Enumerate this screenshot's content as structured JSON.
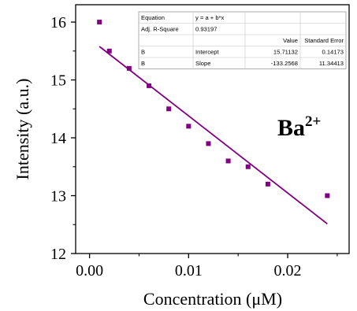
{
  "chart_data": {
    "type": "scatter",
    "title": "",
    "xlabel": "Concentration (μM)",
    "ylabel": "Intensity (a.u.)",
    "xlim": [
      -0.0014,
      0.0262
    ],
    "ylim": [
      12,
      16.3
    ],
    "x_ticks": [
      0.0,
      0.01,
      0.02
    ],
    "x_tick_labels": [
      "0.00",
      "0.01",
      "0.02"
    ],
    "y_ticks": [
      12,
      13,
      14,
      15,
      16
    ],
    "y_tick_labels": [
      "12",
      "13",
      "14",
      "15",
      "16"
    ],
    "grid": false,
    "legend": "none",
    "annotation": {
      "base": "Ba",
      "superscript": "2+"
    },
    "series": [
      {
        "kind": "points",
        "marker": "square",
        "color": "#800080",
        "x": [
          0.001,
          0.002,
          0.004,
          0.006,
          0.008,
          0.01,
          0.012,
          0.014,
          0.016,
          0.018,
          0.024
        ],
        "y": [
          16.0,
          15.5,
          15.2,
          14.9,
          14.5,
          14.2,
          13.9,
          13.6,
          13.5,
          13.2,
          13.0
        ]
      },
      {
        "kind": "fit-line",
        "color": "#800080",
        "intercept": 15.71132,
        "slope": -133.2568,
        "x_range": [
          0.001,
          0.024
        ]
      }
    ],
    "fit_table": {
      "rows": [
        [
          "Equation",
          "y = a + b*x",
          "",
          ""
        ],
        [
          "Adj. R-Square",
          "0.93197",
          "",
          ""
        ],
        [
          "",
          "",
          "Value",
          "Standard Error"
        ],
        [
          "B",
          "Intercept",
          "15.71132",
          "0.14173"
        ],
        [
          "B",
          "Slope",
          "-133.2568",
          "11.34413"
        ]
      ]
    }
  }
}
